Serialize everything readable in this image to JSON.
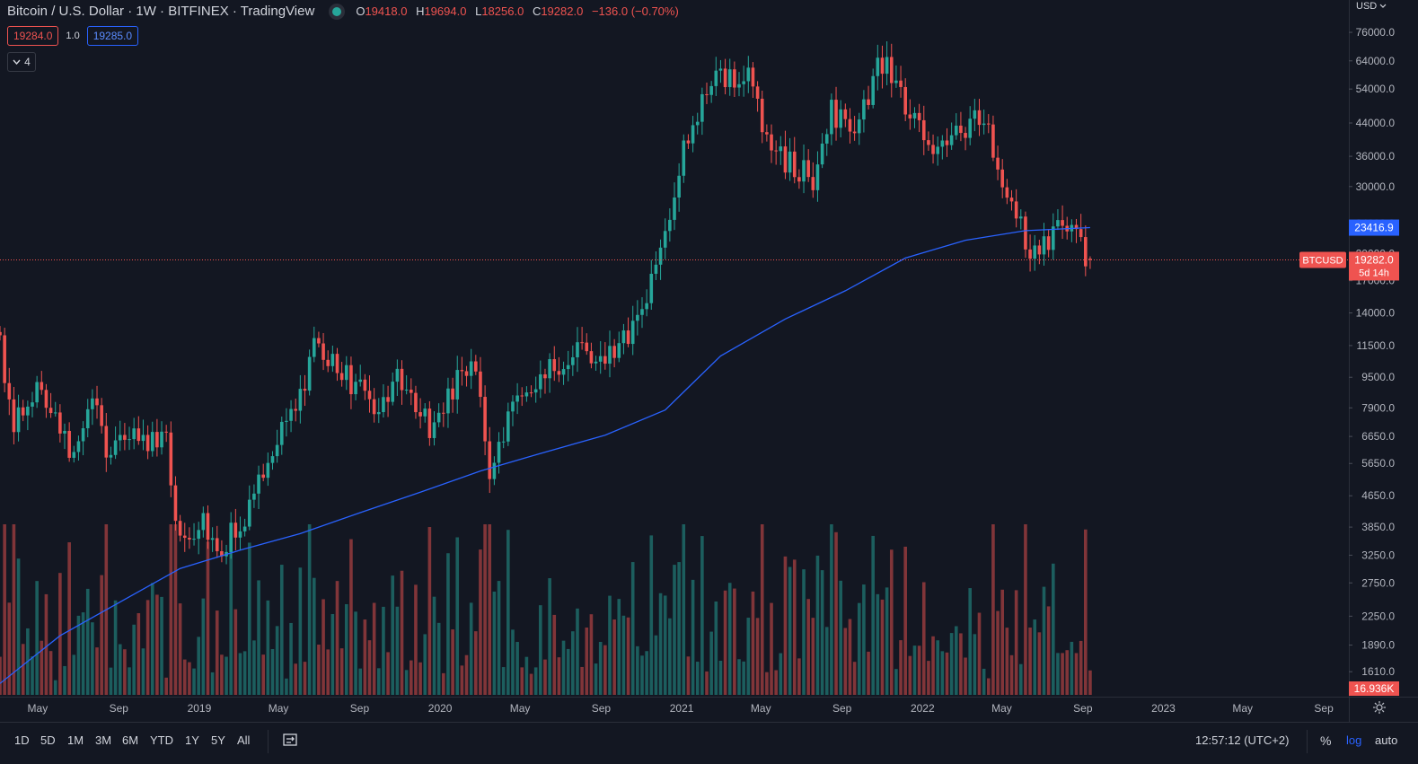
{
  "header": {
    "symbol": "Bitcoin / U.S. Dollar · 1W · BITFINEX · TradingView",
    "ohlc": {
      "o_label": "O",
      "o": "19418.0",
      "h_label": "H",
      "h": "19694.0",
      "l_label": "L",
      "l": "18256.0",
      "c_label": "C",
      "c": "19282.0",
      "change": "−136.0 (−0.70%)"
    },
    "sell_price": "19284.0",
    "spread": "1.0",
    "buy_price": "19285.0",
    "indicators_count": "4"
  },
  "axis": {
    "currency_label": "USD",
    "price_ticks": [
      "76000.0",
      "64000.0",
      "54000.0",
      "44000.0",
      "36000.0",
      "30000.0",
      "24000.0",
      "20000.0",
      "17000.0",
      "14000.0",
      "11500.0",
      "9500.0",
      "7900.0",
      "6650.0",
      "5650.0",
      "4650.0",
      "3850.0",
      "3250.0",
      "2750.0",
      "2250.0",
      "1890.0",
      "1610.0"
    ],
    "time_ticks": [
      "May",
      "Sep",
      "2019",
      "May",
      "Sep",
      "2020",
      "May",
      "Sep",
      "2021",
      "May",
      "Sep",
      "2022",
      "May",
      "Sep",
      "2023",
      "May",
      "Sep"
    ],
    "ma_label": "23416.9",
    "last_symbol": "BTCUSD",
    "last_price": "19282.0",
    "countdown": "5d 14h",
    "volume_label": "16.936K"
  },
  "bottombar": {
    "ranges": [
      "1D",
      "5D",
      "1M",
      "3M",
      "6M",
      "YTD",
      "1Y",
      "5Y",
      "All"
    ],
    "clock": "12:57:12 (UTC+2)",
    "percent": "%",
    "log": "log",
    "auto": "auto"
  },
  "colors": {
    "up": "#26a69a",
    "down": "#ef5350",
    "ma": "#2962ff",
    "bg": "#131722"
  },
  "chart_data": {
    "type": "candlestick",
    "interval": "1W",
    "scale": "log",
    "ylim": [
      1400,
      82000
    ],
    "x_range": [
      "2018-03-05",
      "2023-10-09"
    ],
    "ma_points": [
      [
        "2018-03-05",
        1500
      ],
      [
        "2018-06-04",
        2000
      ],
      [
        "2018-09-03",
        2450
      ],
      [
        "2018-12-03",
        3000
      ],
      [
        "2019-03-04",
        3350
      ],
      [
        "2019-06-03",
        3700
      ],
      [
        "2019-09-02",
        4200
      ],
      [
        "2019-12-02",
        4750
      ],
      [
        "2020-03-02",
        5400
      ],
      [
        "2020-06-01",
        6000
      ],
      [
        "2020-09-07",
        6700
      ],
      [
        "2020-12-07",
        7800
      ],
      [
        "2021-03-01",
        10800
      ],
      [
        "2021-06-07",
        13500
      ],
      [
        "2021-09-06",
        16000
      ],
      [
        "2021-12-06",
        19500
      ],
      [
        "2022-03-07",
        21700
      ],
      [
        "2022-06-06",
        23000
      ],
      [
        "2022-09-12",
        23417
      ]
    ],
    "anchors": [
      [
        "2018-03-05",
        11500
      ],
      [
        "2018-03-26",
        7000
      ],
      [
        "2018-04-30",
        9300
      ],
      [
        "2018-05-28",
        7400
      ],
      [
        "2018-06-25",
        6000
      ],
      [
        "2018-07-23",
        8200
      ],
      [
        "2018-08-13",
        6300
      ],
      [
        "2018-09-03",
        6800
      ],
      [
        "2018-10-08",
        6600
      ],
      [
        "2018-11-12",
        6400
      ],
      [
        "2018-11-26",
        4000
      ],
      [
        "2018-12-17",
        3400
      ],
      [
        "2019-01-07",
        3900
      ],
      [
        "2019-02-04",
        3500
      ],
      [
        "2019-03-04",
        3900
      ],
      [
        "2019-04-01",
        4900
      ],
      [
        "2019-05-13",
        7900
      ],
      [
        "2019-06-03",
        8300
      ],
      [
        "2019-06-24",
        11200
      ],
      [
        "2019-07-29",
        10000
      ],
      [
        "2019-09-23",
        8100
      ],
      [
        "2019-10-28",
        9300
      ],
      [
        "2019-12-16",
        7100
      ],
      [
        "2020-02-10",
        10300
      ],
      [
        "2020-03-02",
        8900
      ],
      [
        "2020-03-16",
        5300
      ],
      [
        "2020-04-27",
        8600
      ],
      [
        "2020-06-01",
        9500
      ],
      [
        "2020-07-27",
        11000
      ],
      [
        "2020-09-07",
        10300
      ],
      [
        "2020-10-26",
        13500
      ],
      [
        "2020-12-14",
        23000
      ],
      [
        "2021-01-04",
        38000
      ],
      [
        "2021-02-15",
        56000
      ],
      [
        "2021-04-12",
        60000
      ],
      [
        "2021-05-17",
        37000
      ],
      [
        "2021-07-19",
        31500
      ],
      [
        "2021-08-16",
        47000
      ],
      [
        "2021-09-27",
        43500
      ],
      [
        "2021-10-25",
        62000
      ],
      [
        "2021-11-08",
        64000
      ],
      [
        "2021-12-06",
        49000
      ],
      [
        "2022-01-24",
        36500
      ],
      [
        "2022-03-28",
        47000
      ],
      [
        "2022-05-09",
        30000
      ],
      [
        "2022-06-13",
        20000
      ],
      [
        "2022-07-25",
        23000
      ],
      [
        "2022-08-15",
        24000
      ],
      [
        "2022-09-05",
        20000
      ],
      [
        "2022-09-12",
        19282
      ]
    ]
  }
}
